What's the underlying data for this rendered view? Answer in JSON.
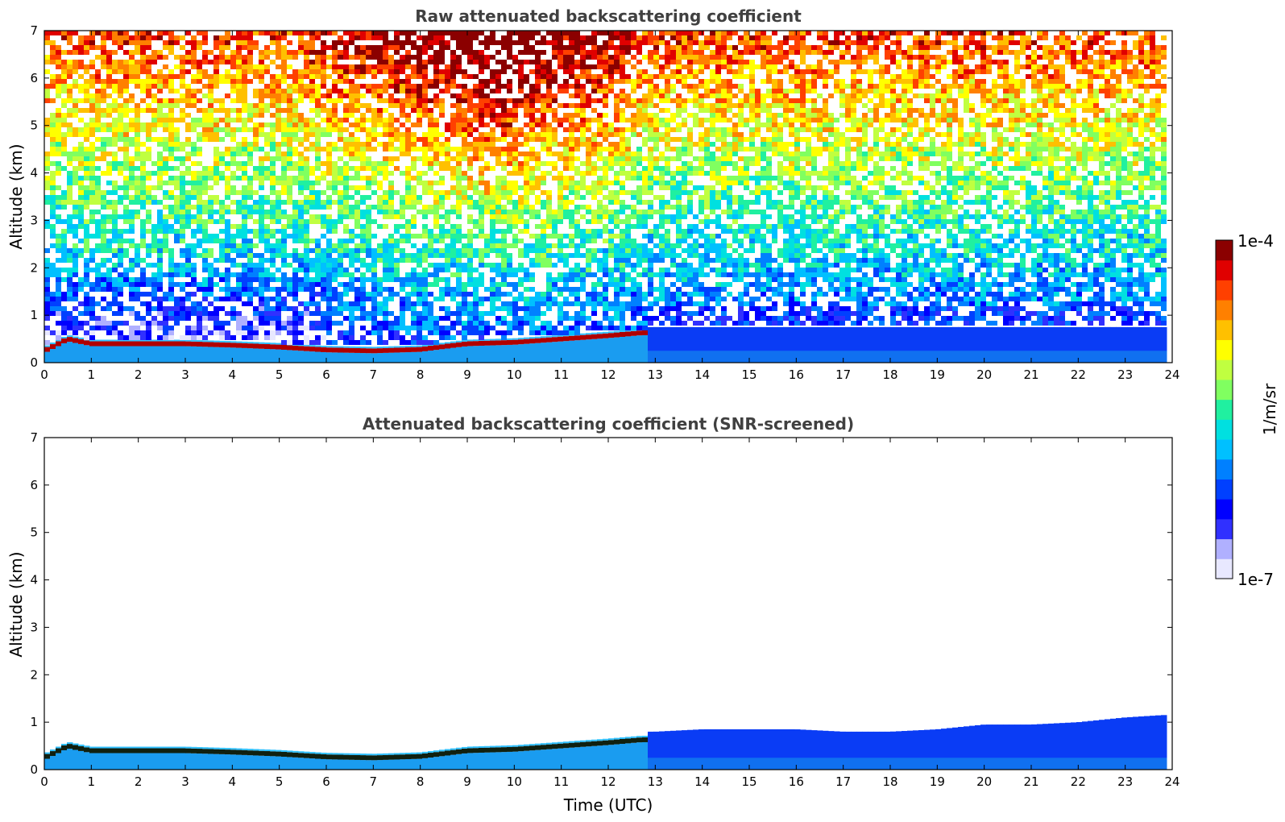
{
  "chart_data": [
    {
      "type": "heatmap",
      "title": "Raw attenuated backscattering coefficient",
      "xlabel": "",
      "ylabel": "Altitude (km)",
      "xlim": [
        0,
        24
      ],
      "ylim": [
        0,
        7
      ],
      "xticks": [
        "0",
        "1",
        "2",
        "3",
        "4",
        "5",
        "6",
        "7",
        "8",
        "9",
        "10",
        "11",
        "12",
        "13",
        "14",
        "15",
        "16",
        "17",
        "18",
        "19",
        "20",
        "21",
        "22",
        "23",
        "24"
      ],
      "yticks": [
        "0",
        "1",
        "2",
        "3",
        "4",
        "5",
        "6",
        "7"
      ],
      "data_end_time": 23.8,
      "layer_top": [
        [
          0,
          0.3
        ],
        [
          0.5,
          0.55
        ],
        [
          1,
          0.45
        ],
        [
          2,
          0.45
        ],
        [
          3,
          0.45
        ],
        [
          4,
          0.42
        ],
        [
          5,
          0.38
        ],
        [
          6,
          0.32
        ],
        [
          7,
          0.3
        ],
        [
          8,
          0.33
        ],
        [
          9,
          0.45
        ],
        [
          10,
          0.48
        ],
        [
          11,
          0.55
        ],
        [
          12,
          0.62
        ],
        [
          12.7,
          0.68
        ]
      ],
      "background_regions": [
        {
          "time": [
            0,
            6
          ],
          "alt": [
            0.7,
            2.0
          ],
          "level": "low"
        },
        {
          "time": [
            6,
            12
          ],
          "alt": [
            3.0,
            7.0
          ],
          "level": "high"
        },
        {
          "time": [
            13,
            24
          ],
          "alt": [
            0,
            1.0
          ],
          "level": "medium"
        }
      ]
    },
    {
      "type": "heatmap",
      "title": "Attenuated backscattering coefficient (SNR-screened)",
      "xlabel": "Time (UTC)",
      "ylabel": "Altitude (km)",
      "xlim": [
        0,
        24
      ],
      "ylim": [
        0,
        7
      ],
      "xticks": [
        "0",
        "1",
        "2",
        "3",
        "4",
        "5",
        "6",
        "7",
        "8",
        "9",
        "10",
        "11",
        "12",
        "13",
        "14",
        "15",
        "16",
        "17",
        "18",
        "19",
        "20",
        "21",
        "22",
        "23",
        "24"
      ],
      "yticks": [
        "0",
        "1",
        "2",
        "3",
        "4",
        "5",
        "6",
        "7"
      ],
      "data_end_time": 23.8,
      "layer_top": [
        [
          0,
          0.3
        ],
        [
          0.5,
          0.55
        ],
        [
          1,
          0.45
        ],
        [
          2,
          0.45
        ],
        [
          3,
          0.45
        ],
        [
          4,
          0.42
        ],
        [
          5,
          0.38
        ],
        [
          6,
          0.32
        ],
        [
          7,
          0.3
        ],
        [
          8,
          0.33
        ],
        [
          9,
          0.45
        ],
        [
          10,
          0.48
        ],
        [
          11,
          0.55
        ],
        [
          12,
          0.62
        ],
        [
          12.7,
          0.68
        ]
      ],
      "screened_top": [
        [
          13,
          0.8
        ],
        [
          14,
          0.85
        ],
        [
          15,
          0.85
        ],
        [
          16,
          0.85
        ],
        [
          17,
          0.8
        ],
        [
          18,
          0.8
        ],
        [
          19,
          0.85
        ],
        [
          20,
          0.95
        ],
        [
          21,
          0.95
        ],
        [
          22,
          1.0
        ],
        [
          23,
          1.1
        ],
        [
          23.8,
          1.15
        ]
      ]
    }
  ],
  "colorbar": {
    "min_label": "1e-7",
    "max_label": "1e-4",
    "label": "1/m/sr",
    "colors": [
      "#e8e8ff",
      "#b0b0ff",
      "#3030ff",
      "#0000ff",
      "#0040ff",
      "#0080ff",
      "#00c0ff",
      "#00e0e0",
      "#20f0a0",
      "#80ff60",
      "#c0ff40",
      "#ffff00",
      "#ffc000",
      "#ff8000",
      "#ff4000",
      "#e00000",
      "#8b0000"
    ]
  }
}
